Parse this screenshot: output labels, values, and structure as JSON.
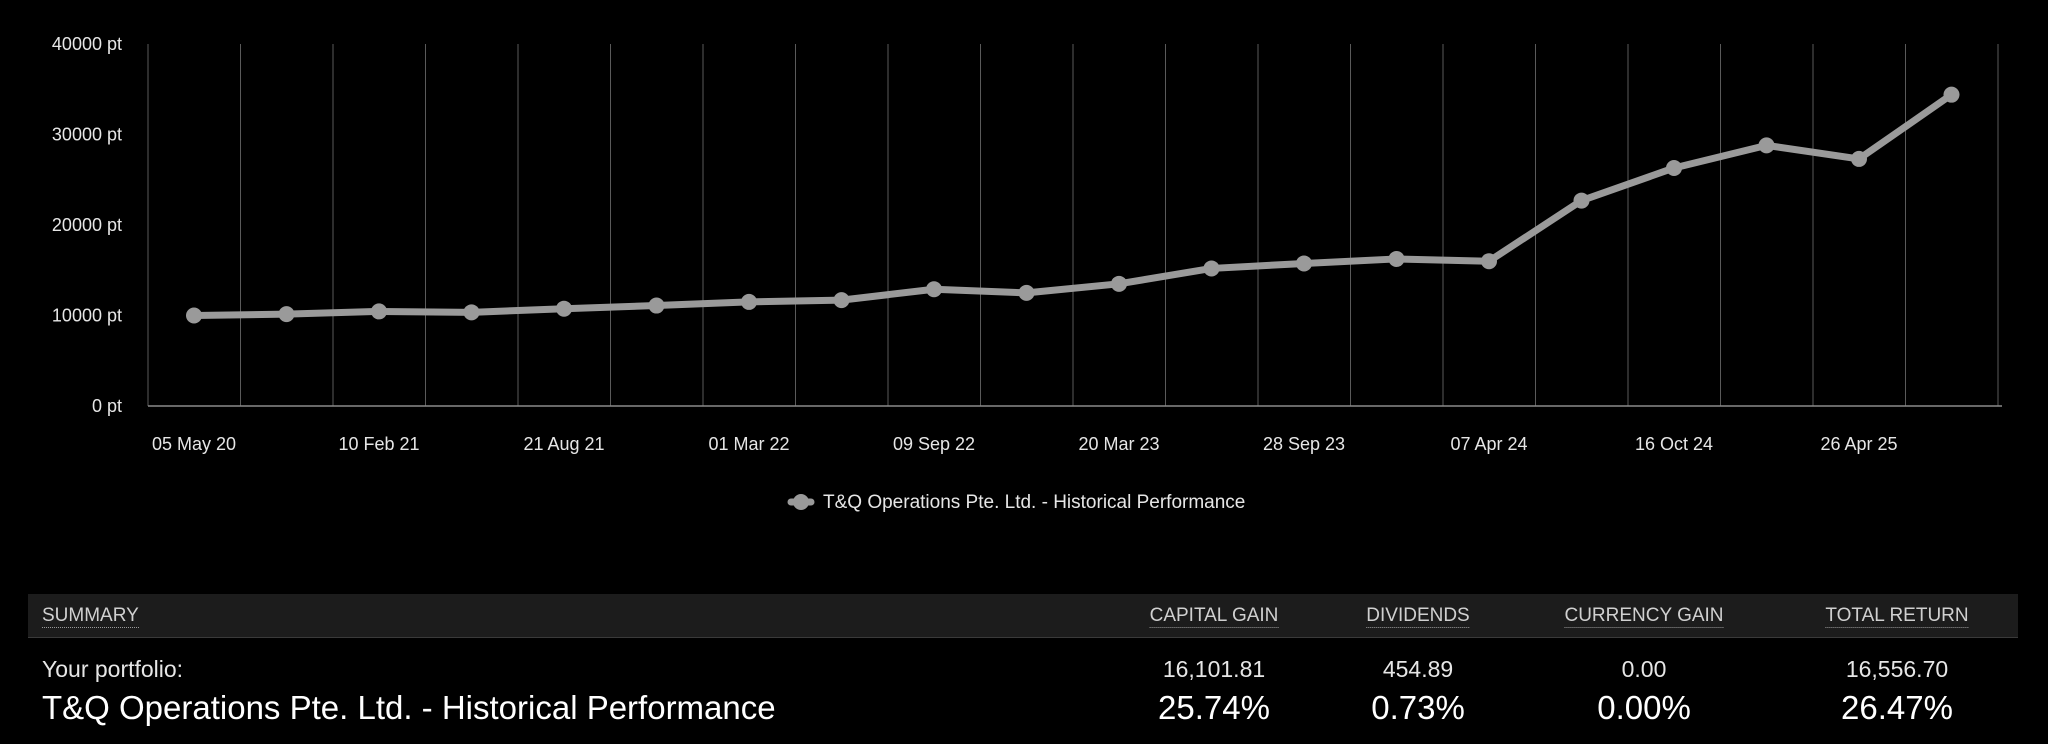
{
  "chart_data": {
    "type": "line",
    "y_unit": "pt",
    "ylim": [
      0,
      40000
    ],
    "yticks": [
      0,
      10000,
      20000,
      30000,
      40000
    ],
    "ytick_labels": [
      "0 pt",
      "10000 pt",
      "20000 pt",
      "30000 pt",
      "40000 pt"
    ],
    "xtick_labels": [
      "05 May 20",
      "10 Feb 21",
      "21 Aug 21",
      "01 Mar 22",
      "09 Sep 22",
      "20 Mar 23",
      "28 Sep 23",
      "07 Apr 24",
      "16 Oct 24",
      "26 Apr 25"
    ],
    "grid": true,
    "legend": "bottom-center",
    "series": [
      {
        "name": "T&Q Operations Pte. Ltd. - Historical Performance",
        "color": "#9a9a9a",
        "values": [
          10000,
          10150,
          10450,
          10350,
          10750,
          11100,
          11500,
          11700,
          12900,
          12500,
          13500,
          15200,
          15750,
          16250,
          16000,
          22700,
          26300,
          28800,
          27300,
          34400
        ]
      }
    ]
  },
  "summary": {
    "header": {
      "summary": "SUMMARY",
      "capital_gain": "CAPITAL GAIN",
      "dividends": "DIVIDENDS",
      "currency_gain": "CURRENCY GAIN",
      "total_return": "TOTAL RETURN"
    },
    "portfolio_row": {
      "label": "Your portfolio:",
      "capital_gain": "16,101.81",
      "dividends": "454.89",
      "currency_gain": "0.00",
      "total_return": "16,556.70"
    },
    "performance_row": {
      "label": "T&Q Operations Pte. Ltd. - Historical Performance",
      "capital_gain": "25.74%",
      "dividends": "0.73%",
      "currency_gain": "0.00%",
      "total_return": "26.47%"
    }
  }
}
